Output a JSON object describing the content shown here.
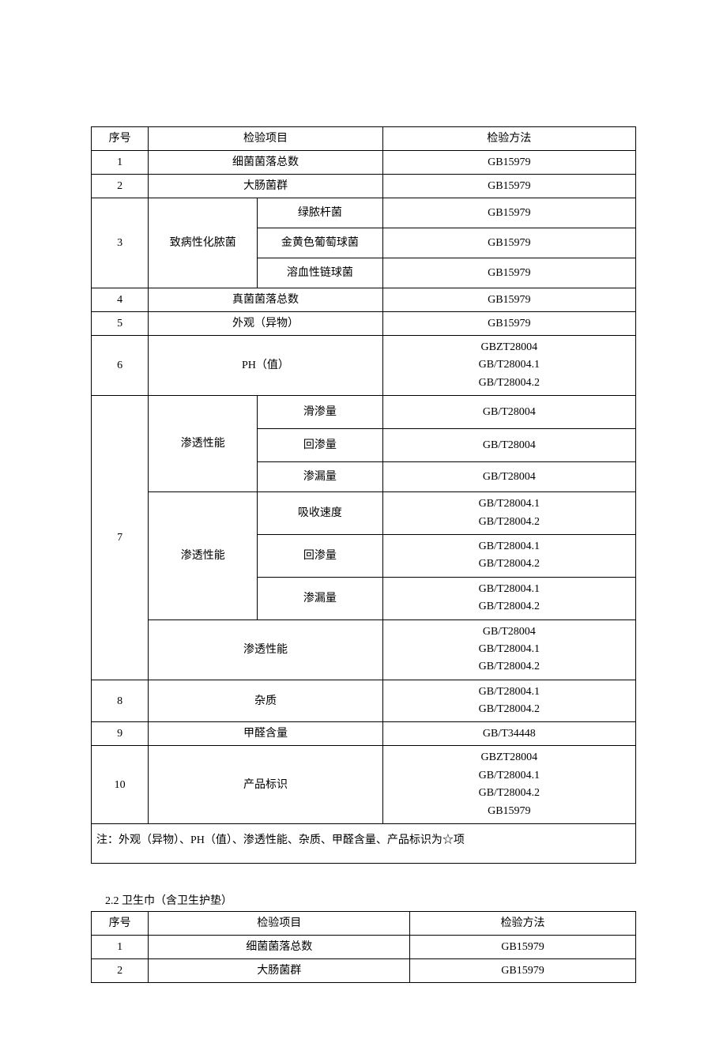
{
  "table1": {
    "headers": {
      "seq": "序号",
      "item": "检验项目",
      "method": "检验方法"
    },
    "rows": {
      "r1": {
        "seq": "1",
        "item": "细菌菌落总数",
        "method": "GB15979"
      },
      "r2": {
        "seq": "2",
        "item": "大肠菌群",
        "method": "GB15979"
      },
      "r3": {
        "seq": "3",
        "group": "致病性化脓菌",
        "sub1": {
          "item": "绿脓杆菌",
          "method": "GB15979"
        },
        "sub2": {
          "item": "金黄色葡萄球菌",
          "method": "GB15979"
        },
        "sub3": {
          "item": "溶血性链球菌",
          "method": "GB15979"
        }
      },
      "r4": {
        "seq": "4",
        "item": "真菌菌落总数",
        "method": "GB15979"
      },
      "r5": {
        "seq": "5",
        "item": "外观（异物）",
        "method": "GB15979"
      },
      "r6": {
        "seq": "6",
        "item": "PH（值）",
        "method": "GBZT28004\nGB/T28004.1\nGB/T28004.2"
      },
      "r7": {
        "seq": "7",
        "g1": {
          "group": "渗透性能",
          "sub1": {
            "item": "滑渗量",
            "method": "GB/T28004"
          },
          "sub2": {
            "item": "回渗量",
            "method": "GB/T28004"
          },
          "sub3": {
            "item": "渗漏量",
            "method": "GB/T28004"
          }
        },
        "g2": {
          "group": "渗透性能",
          "sub1": {
            "item": "吸收速度",
            "method": "GB/T28004.1\nGB/T28004.2"
          },
          "sub2": {
            "item": "回渗量",
            "method": "GB/T28004.1\nGB/T28004.2"
          },
          "sub3": {
            "item": "渗漏量",
            "method": "GB/T28004.1\nGB/T28004.2"
          }
        },
        "g3": {
          "item": "渗透性能",
          "method": "GB/T28004\nGB/T28004.1\nGB/T28004.2"
        }
      },
      "r8": {
        "seq": "8",
        "item": "杂质",
        "method": "GB/T28004.1\nGB/T28004.2"
      },
      "r9": {
        "seq": "9",
        "item": "甲醛含量",
        "method": "GB/T34448"
      },
      "r10": {
        "seq": "10",
        "item": "产品标识",
        "method": "GBZT28004\nGB/T28004.1\nGB/T28004.2\nGB15979"
      }
    },
    "note": "注：外观（异物）、PH（值）、渗透性能、杂质、甲醛含量、产品标识为☆项"
  },
  "section2": {
    "title": "2.2 卫生巾（含卫生护垫）"
  },
  "table2": {
    "headers": {
      "seq": "序号",
      "item": "检验项目",
      "method": "检验方法"
    },
    "rows": {
      "r1": {
        "seq": "1",
        "item": "细菌菌落总数",
        "method": "GB15979"
      },
      "r2": {
        "seq": "2",
        "item": "大肠菌群",
        "method": "GB15979"
      }
    }
  }
}
